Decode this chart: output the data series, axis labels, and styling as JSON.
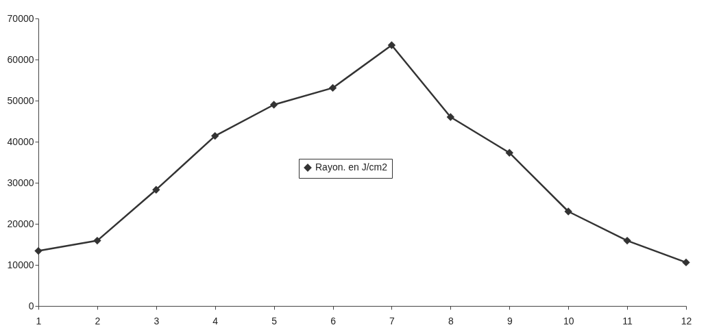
{
  "chart_data": {
    "type": "line",
    "x": [
      1,
      2,
      3,
      4,
      5,
      6,
      7,
      8,
      9,
      10,
      11,
      12
    ],
    "series": [
      {
        "name": "Rayon. en J/cm2",
        "color": "#333333",
        "values": [
          13400,
          15900,
          28300,
          41400,
          49000,
          53100,
          63500,
          46000,
          37300,
          23000,
          15900,
          10600
        ]
      }
    ],
    "xlim": [
      1,
      12
    ],
    "xticks": [
      1,
      2,
      3,
      4,
      5,
      6,
      7,
      8,
      9,
      10,
      11,
      12
    ],
    "ylim": [
      0,
      70000
    ],
    "yticks": [
      0,
      10000,
      20000,
      30000,
      40000,
      50000,
      60000,
      70000
    ],
    "grid": false,
    "legend": "center",
    "marker": "diamond",
    "line_style": "solid"
  }
}
